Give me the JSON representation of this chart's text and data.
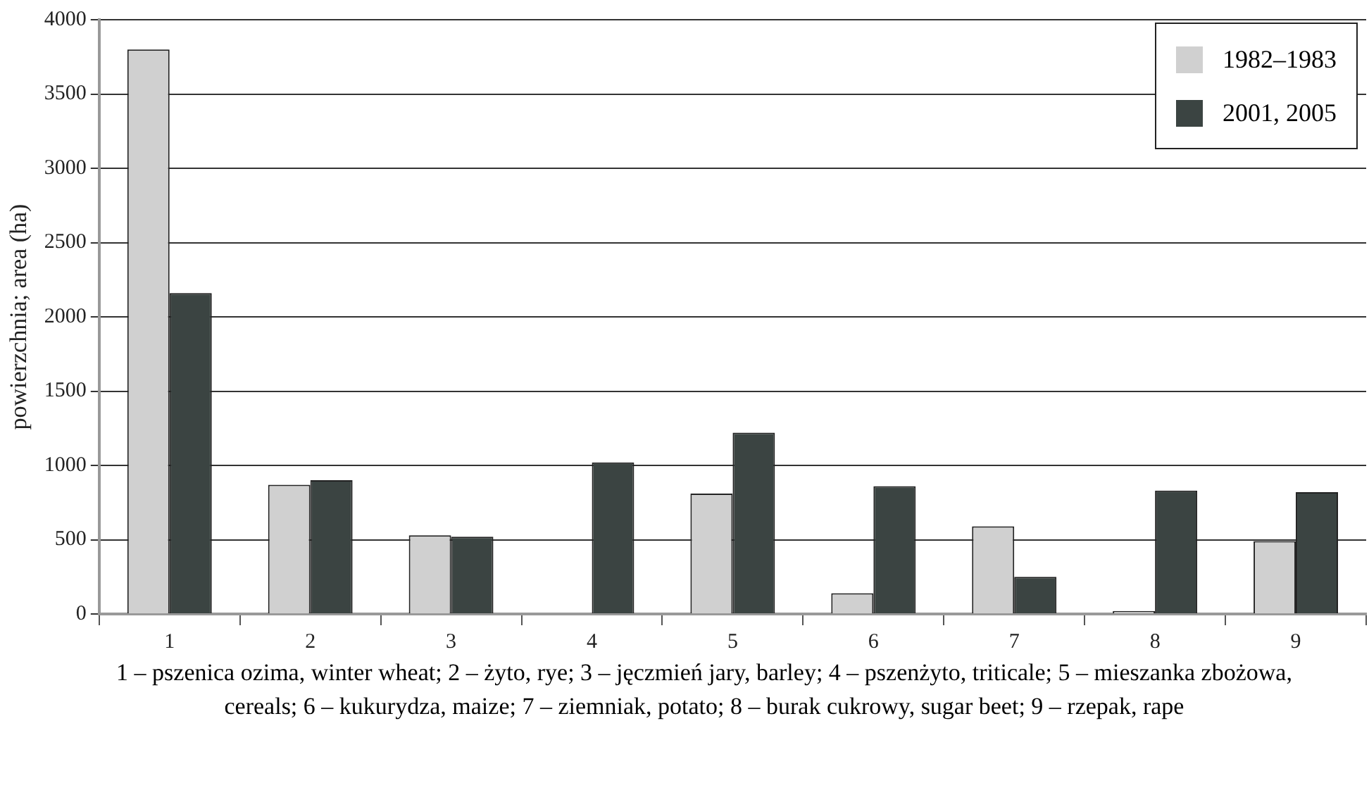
{
  "chart_data": {
    "type": "bar",
    "ylabel": "powierzchnia; area (ha)",
    "xlabel": "1 – pszenica ozima, winter wheat; 2 – żyto, rye; 3 – jęczmień jary, barley; 4 – pszenżyto, triticale; 5 – mieszanka zbożowa, cereals; 6 – kukurydza, maize; 7 – ziemniak, potato; 8 – burak cukrowy, sugar beet; 9 – rzepak, rape",
    "categories": [
      "1",
      "2",
      "3",
      "4",
      "5",
      "6",
      "7",
      "8",
      "9"
    ],
    "series": [
      {
        "name": "1982–1983",
        "color": "#d0d0d0",
        "values": [
          3800,
          870,
          530,
          0,
          810,
          140,
          590,
          20,
          490
        ]
      },
      {
        "name": "2001, 2005",
        "color": "#3b4442",
        "values": [
          2160,
          900,
          520,
          1020,
          1220,
          860,
          250,
          830,
          820
        ]
      }
    ],
    "ylim": [
      0,
      4000
    ],
    "yticks": [
      0,
      500,
      1000,
      1500,
      2000,
      2500,
      3000,
      3500,
      4000
    ],
    "grid": "y",
    "legend": "top right"
  }
}
